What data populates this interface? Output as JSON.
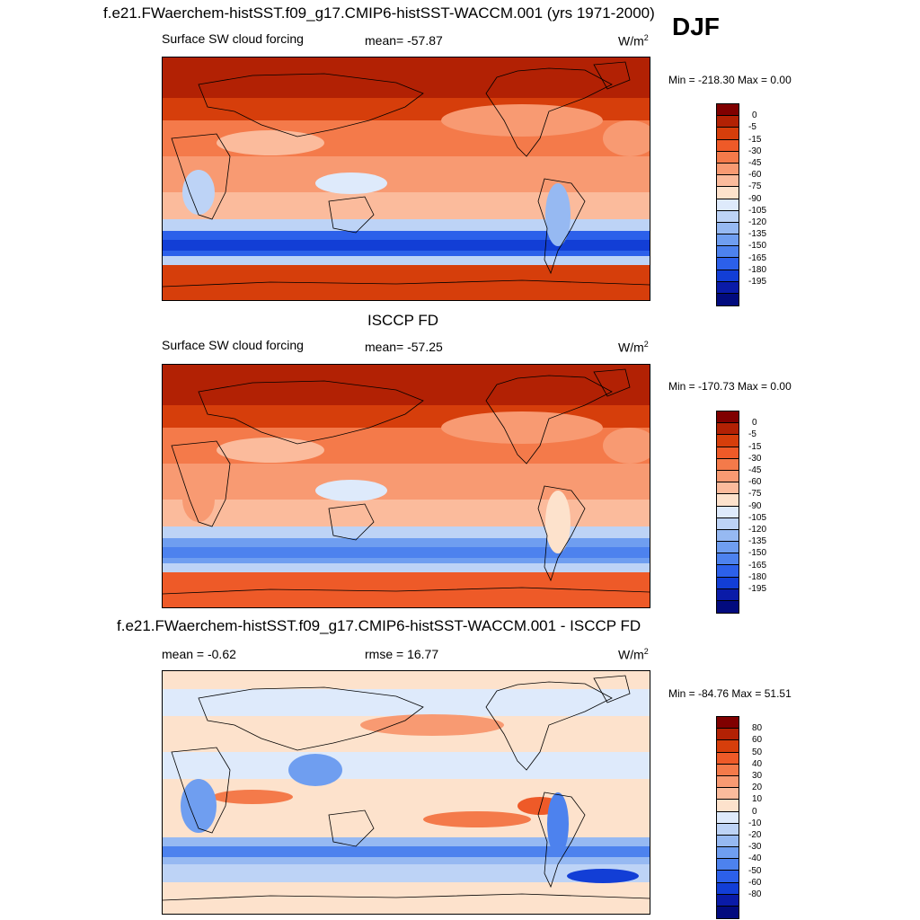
{
  "season": "DJF",
  "colors": {
    "abs": [
      "#800000",
      "#b22104",
      "#d63e0b",
      "#ee5a28",
      "#f47a4a",
      "#f89a72",
      "#fbbb9c",
      "#fde2cc",
      "#deeafb",
      "#bdd3f6",
      "#96b9f2",
      "#6f9ef0",
      "#4d82ee",
      "#2c60ea",
      "#123ed6",
      "#0a1ba8",
      "#020b7e"
    ],
    "diff": [
      "#800000",
      "#b22104",
      "#d63e0b",
      "#ee5a28",
      "#f47a4a",
      "#f89a72",
      "#fbbb9c",
      "#fde2cc",
      "#deeafb",
      "#bdd3f6",
      "#96b9f2",
      "#6f9ef0",
      "#4d82ee",
      "#2c60ea",
      "#123ed6",
      "#0a1ba8",
      "#020b7e"
    ]
  },
  "panels": [
    {
      "title": "f.e21.FWaerchem-histSST.f09_g17.CMIP6-histSST-WACCM.001 (yrs 1971-2000)",
      "left_label": "Surface SW cloud forcing",
      "center_label": "mean= -57.87",
      "units": "W/m",
      "units_sup": "2",
      "minmax": "Min = -218.30 Max =   0.00",
      "colorbar_ticks": [
        "0",
        "-5",
        "-15",
        "-30",
        "-45",
        "-60",
        "-75",
        "-90",
        "-105",
        "-120",
        "-135",
        "-150",
        "-165",
        "-180",
        "-195"
      ]
    },
    {
      "title": "ISCCP FD",
      "left_label": "Surface SW cloud forcing",
      "center_label": "mean= -57.25",
      "units": "W/m",
      "units_sup": "2",
      "minmax": "Min = -170.73 Max =   0.00",
      "colorbar_ticks": [
        "0",
        "-5",
        "-15",
        "-30",
        "-45",
        "-60",
        "-75",
        "-90",
        "-105",
        "-120",
        "-135",
        "-150",
        "-165",
        "-180",
        "-195"
      ]
    },
    {
      "title": "f.e21.FWaerchem-histSST.f09_g17.CMIP6-histSST-WACCM.001 - ISCCP FD",
      "left_label": "mean =  -0.62",
      "center_label": "rmse =  16.77",
      "units": "W/m",
      "units_sup": "2",
      "minmax": "Min = -84.76 Max =  51.51",
      "colorbar_ticks": [
        "80",
        "60",
        "50",
        "40",
        "30",
        "20",
        "10",
        "0",
        "-10",
        "-20",
        "-30",
        "-40",
        "-50",
        "-60",
        "-80"
      ]
    }
  ],
  "chart_data": {
    "type": "heatmap",
    "panels": [
      {
        "name": "f.e21.FWaerchem-histSST.f09_g17.CMIP6-histSST-WACCM.001 (yrs 1971-2000)",
        "field": "Surface SW cloud forcing",
        "mean": -57.87,
        "min": -218.3,
        "max": 0.0,
        "units": "W/m2",
        "contour_levels": [
          0,
          -5,
          -15,
          -30,
          -45,
          -60,
          -75,
          -90,
          -105,
          -120,
          -135,
          -150,
          -165,
          -180,
          -195
        ]
      },
      {
        "name": "ISCCP FD",
        "field": "Surface SW cloud forcing",
        "mean": -57.25,
        "min": -170.73,
        "max": 0.0,
        "units": "W/m2",
        "contour_levels": [
          0,
          -5,
          -15,
          -30,
          -45,
          -60,
          -75,
          -90,
          -105,
          -120,
          -135,
          -150,
          -165,
          -180,
          -195
        ]
      },
      {
        "name": "f.e21.FWaerchem-histSST.f09_g17.CMIP6-histSST-WACCM.001 - ISCCP FD",
        "mean": -0.62,
        "rmse": 16.77,
        "min": -84.76,
        "max": 51.51,
        "units": "W/m2",
        "contour_levels": [
          80,
          60,
          50,
          40,
          30,
          20,
          10,
          0,
          -10,
          -20,
          -30,
          -40,
          -50,
          -60,
          -80
        ]
      }
    ]
  }
}
